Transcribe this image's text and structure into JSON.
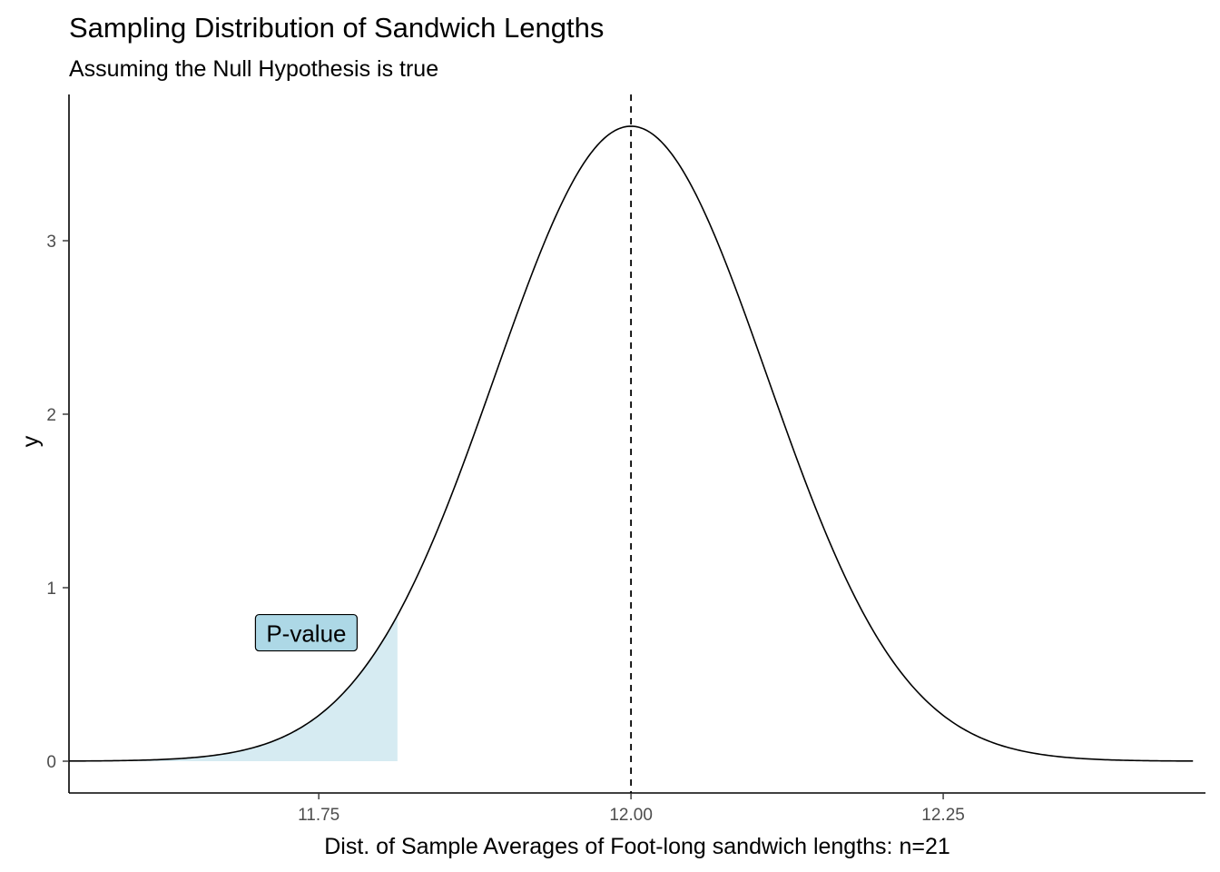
{
  "chart_data": {
    "type": "area",
    "title": "Sampling Distribution of Sandwich Lengths",
    "subtitle": "Assuming the Null Hypothesis is true",
    "xlabel": "Dist. of Sample Averages of Foot-long sandwich lengths: n=21",
    "ylabel": "y",
    "xlim": [
      11.55,
      12.46
    ],
    "ylim": [
      0,
      3.65
    ],
    "x_ticks": [
      11.75,
      12.0,
      12.25
    ],
    "x_tick_labels": [
      "11.75",
      "12.00",
      "12.25"
    ],
    "y_ticks": [
      0,
      1,
      2,
      3
    ],
    "y_tick_labels": [
      "0",
      "1",
      "2",
      "3"
    ],
    "grid": false,
    "legend": "none",
    "curve": {
      "name": "",
      "distribution": "normal",
      "mean": 12.0,
      "sd": 0.109,
      "x_range": [
        11.55,
        12.45
      ],
      "color": "#000000"
    },
    "shaded_region": {
      "x_from": 11.55,
      "x_to": 11.813,
      "color": "#add8e6",
      "opacity": 0.5
    },
    "reference_line": {
      "x": 12.0,
      "style": "dashed",
      "color": "#000000"
    },
    "annotation": {
      "text": "P-value",
      "x": 11.74,
      "y": 0.73,
      "fill": "#add8e6"
    }
  }
}
